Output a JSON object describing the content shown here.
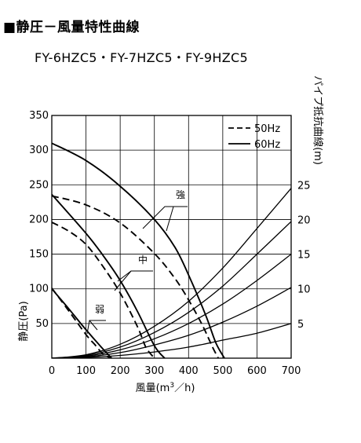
{
  "header": {
    "title": "■静圧－風量特性曲線",
    "subtitle": "FY-6HZC5・FY-7HZC5・FY-9HZC5"
  },
  "chart_data": {
    "type": "line",
    "xlabel_prefix": "風量(m",
    "xlabel_sup": "3",
    "xlabel_suffix": "／h)",
    "ylabel": "静圧(Pa)",
    "y2label": "パイプ抵抗曲線(m)",
    "xlim": [
      0,
      700
    ],
    "ylim": [
      0,
      350
    ],
    "x_ticks": [
      0,
      100,
      200,
      300,
      400,
      500,
      600,
      700
    ],
    "y_ticks": [
      50,
      100,
      150,
      200,
      250,
      300,
      350
    ],
    "y2_ticks": [
      5,
      10,
      15,
      20,
      25
    ],
    "grid": true,
    "legend_position": "top-right",
    "legend": [
      {
        "label": "50Hz",
        "style": "dashed"
      },
      {
        "label": "60Hz",
        "style": "solid"
      }
    ],
    "annotations": [
      {
        "text": "強",
        "series": [
          "強 50Hz",
          "強 60Hz"
        ]
      },
      {
        "text": "中",
        "series": [
          "中 50Hz",
          "中 60Hz"
        ]
      },
      {
        "text": "弱",
        "series": [
          "弱 50Hz",
          "弱 60Hz"
        ]
      }
    ],
    "series": [
      {
        "name": "強 60Hz",
        "style": "solid",
        "x": [
          0,
          100,
          200,
          300,
          360,
          400,
          450,
          480,
          505
        ],
        "y": [
          310,
          285,
          248,
          200,
          160,
          120,
          62,
          22,
          0
        ]
      },
      {
        "name": "強 50Hz",
        "style": "dashed",
        "x": [
          0,
          100,
          200,
          300,
          360,
          400,
          440,
          470,
          487
        ],
        "y": [
          234,
          221,
          195,
          151,
          115,
          84,
          48,
          16,
          0
        ]
      },
      {
        "name": "中 60Hz",
        "style": "solid",
        "x": [
          0,
          100,
          150,
          200,
          250,
          300,
          330
        ],
        "y": [
          236,
          180,
          148,
          112,
          68,
          18,
          0
        ]
      },
      {
        "name": "中 50Hz",
        "style": "dashed",
        "x": [
          0,
          50,
          100,
          150,
          200,
          250,
          275,
          300
        ],
        "y": [
          196,
          183,
          164,
          132,
          94,
          46,
          16,
          0
        ]
      },
      {
        "name": "弱 60Hz",
        "style": "solid",
        "x": [
          0,
          50,
          100,
          150,
          175
        ],
        "y": [
          100,
          71,
          41,
          13,
          0
        ]
      },
      {
        "name": "弱 50Hz",
        "style": "dashed",
        "x": [
          0,
          50,
          100,
          125,
          150,
          175
        ],
        "y": [
          101,
          68,
          34,
          20,
          6,
          0
        ]
      }
    ],
    "pipe_curves": [
      {
        "name": "5",
        "x": [
          0,
          100,
          200,
          300,
          400,
          500,
          600,
          700
        ],
        "y": [
          0,
          1,
          4,
          9,
          16,
          26,
          36,
          50
        ]
      },
      {
        "name": "10",
        "x": [
          0,
          100,
          200,
          300,
          400,
          500,
          600,
          700
        ],
        "y": [
          0,
          2,
          8,
          19,
          33,
          52,
          75,
          102
        ]
      },
      {
        "name": "15",
        "x": [
          0,
          100,
          200,
          300,
          400,
          500,
          600,
          700
        ],
        "y": [
          0,
          3,
          12,
          28,
          50,
          78,
          112,
          150
        ]
      },
      {
        "name": "20",
        "x": [
          0,
          100,
          200,
          300,
          400,
          500,
          600,
          700
        ],
        "y": [
          0,
          4,
          16,
          37,
          66,
          104,
          150,
          197
        ]
      },
      {
        "name": "25",
        "x": [
          0,
          100,
          200,
          300,
          400,
          500,
          600,
          700
        ],
        "y": [
          0,
          5,
          20,
          46,
          82,
          130,
          187,
          245
        ]
      }
    ]
  }
}
